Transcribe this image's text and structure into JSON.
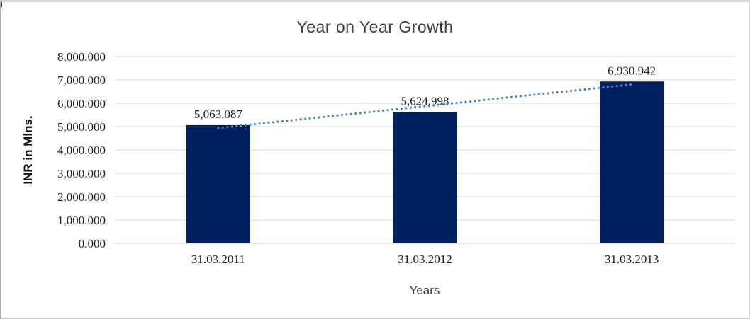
{
  "chart_data": {
    "type": "bar",
    "title": "Year on Year Growth",
    "xlabel": "Years",
    "ylabel": "INR in Mlns.",
    "categories": [
      "31.03.2011",
      "31.03.2012",
      "31.03.2013"
    ],
    "values": [
      5063.087,
      5624.998,
      6930.942
    ],
    "data_labels": [
      "5,063.087",
      "5,624.998",
      "6,930.942"
    ],
    "y_ticks": [
      "0.000",
      "1,000.000",
      "2,000.000",
      "3,000.000",
      "4,000.000",
      "5,000.000",
      "6,000.000",
      "7,000.000",
      "8,000.000"
    ],
    "ylim": [
      0,
      8000
    ],
    "y_tick_step": 1000,
    "grid": true,
    "legend": "none",
    "trendline": {
      "type": "linear",
      "style": "dotted"
    },
    "colors": {
      "bar": "#002060",
      "trendline": "#4a86c8",
      "gridline": "#d9d9d9",
      "axis_line": "#d0d0d0",
      "tick_text": "#1f1f1f",
      "data_label_text": "#1f1f1f",
      "title_text": "#3f3f3f"
    }
  }
}
